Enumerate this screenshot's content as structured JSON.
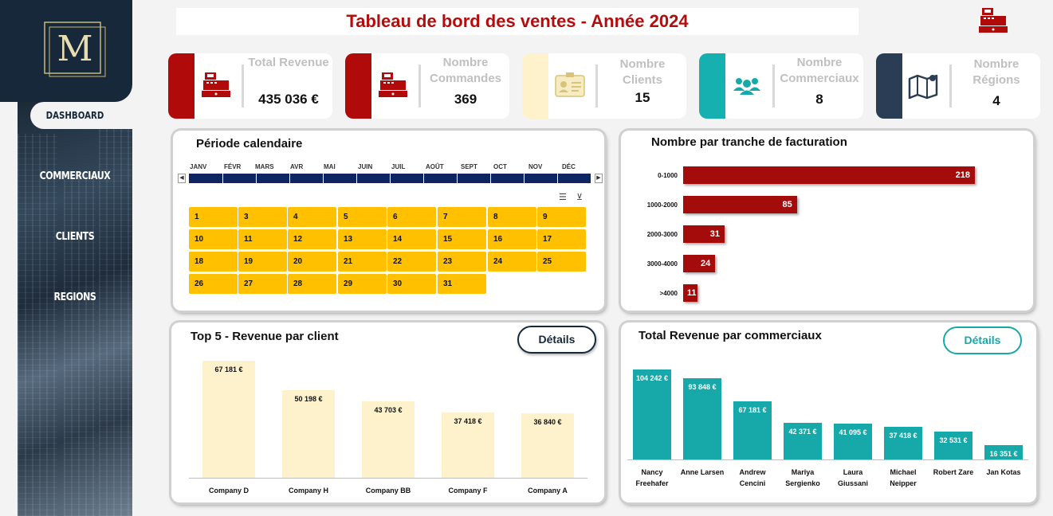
{
  "title": "Tableau de bord des ventes  - Année 2024",
  "logo_letter": "M",
  "nav": [
    {
      "label": "DASHBOARD",
      "active": true
    },
    {
      "label": "COMMERCIAUX",
      "active": false
    },
    {
      "label": "CLIENTS",
      "active": false
    },
    {
      "label": "REGIONS",
      "active": false
    }
  ],
  "kpis": [
    {
      "label": "Total Revenue",
      "value": "435 036 €",
      "color": "#b10a0a",
      "icon": "cash-register-icon"
    },
    {
      "label": "Nombre Commandes",
      "value": "369",
      "color": "#b10a0a",
      "icon": "cash-register-icon"
    },
    {
      "label": "Nombre Clients",
      "value": "15",
      "color": "#fdf2cc",
      "icon": "id-card-icon"
    },
    {
      "label": "Nombre Commerciaux",
      "value": "8",
      "color": "#17b0b0",
      "icon": "users-icon"
    },
    {
      "label": "Nombre Régions",
      "value": "4",
      "color": "#2b3c55",
      "icon": "map-icon"
    }
  ],
  "calendar": {
    "title": "Période calendaire",
    "months": [
      "JANV",
      "FÉVR",
      "MARS",
      "AVR",
      "MAI",
      "JUIN",
      "JUIL",
      "AOÛT",
      "SEPT",
      "OCT",
      "NOV",
      "DÉC"
    ],
    "days": [
      "1",
      "3",
      "4",
      "5",
      "6",
      "7",
      "8",
      "9",
      "10",
      "11",
      "12",
      "13",
      "14",
      "15",
      "16",
      "17",
      "18",
      "19",
      "20",
      "21",
      "22",
      "23",
      "24",
      "25",
      "26",
      "27",
      "28",
      "29",
      "30",
      "31"
    ]
  },
  "billing": {
    "title": "Nombre par tranche de facturation",
    "chart_data": {
      "type": "bar",
      "orientation": "horizontal",
      "categories": [
        "0-1000",
        "1000-2000",
        "2000-3000",
        "3000-4000",
        ">4000"
      ],
      "values": [
        218,
        85,
        31,
        24,
        11
      ],
      "color": "#a40c0c"
    }
  },
  "top_clients": {
    "title": "Top 5 - Revenue par client",
    "button": "Détails",
    "chart_data": {
      "type": "bar",
      "categories": [
        "Company D",
        "Company H",
        "Company BB",
        "Company F",
        "Company A"
      ],
      "values": [
        67181,
        50198,
        43703,
        37418,
        36840
      ],
      "labels": [
        "67 181 €",
        "50 198 €",
        "43 703 €",
        "37 418 €",
        "36 840 €"
      ],
      "color": "#fdf2cc"
    }
  },
  "sales_reps": {
    "title": "Total Revenue par commerciaux",
    "button": "Détails",
    "chart_data": {
      "type": "bar",
      "categories": [
        "Nancy Freehafer",
        "Anne Larsen",
        "Andrew Cencini",
        "Mariya Sergienko",
        "Laura Giussani",
        "Michael Neipper",
        "Robert Zare",
        "Jan Kotas"
      ],
      "values": [
        104242,
        93848,
        67181,
        42371,
        41095,
        37418,
        32531,
        16351
      ],
      "labels": [
        "104 242 €",
        "93 848 €",
        "67 181 €",
        "42 371 €",
        "41 095 €",
        "37 418 €",
        "32 531 €",
        "16 351 €"
      ],
      "color": "#17a9a9"
    }
  }
}
